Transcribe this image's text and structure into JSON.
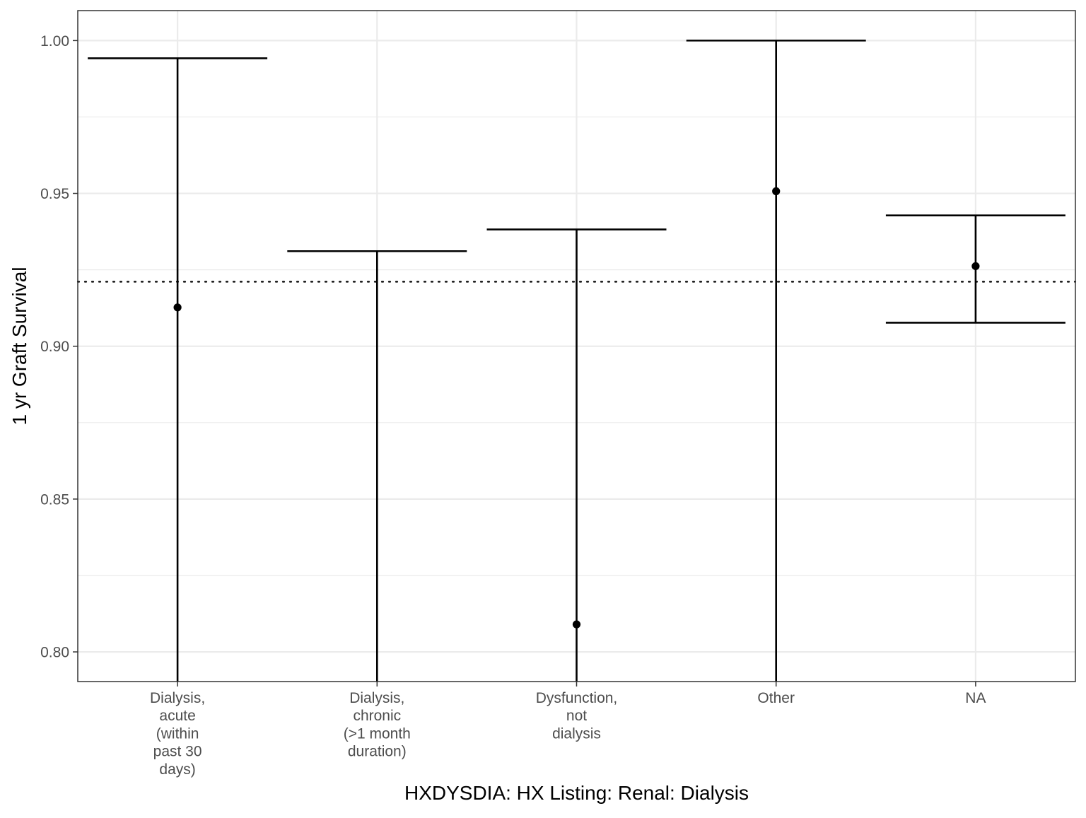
{
  "chart_data": {
    "type": "errorbar",
    "title": "",
    "xlabel": "HXDYSDIA: HX Listing: Renal: Dialysis",
    "ylabel": "1 yr Graft Survival",
    "categories": [
      "Dialysis,\nacute\n(within\npast 30\ndays)",
      "Dialysis,\nchronic\n(>1 month\nduration)",
      "Dysfunction,\nnot\ndialysis",
      "Other",
      "NA"
    ],
    "estimate": [
      0.9127,
      null,
      0.809,
      0.9507,
      0.9262
    ],
    "lower": [
      0.79,
      0.79,
      0.79,
      0.79,
      0.9077
    ],
    "upper": [
      0.9942,
      0.9311,
      0.9382,
      1.0,
      0.9428
    ],
    "reference_line": 0.9211,
    "ylim": [
      0.7903,
      1.0098
    ],
    "yticks": [
      "0.80",
      "0.85",
      "0.90",
      "0.95",
      "1.00"
    ],
    "ytick_values": [
      0.8,
      0.85,
      0.9,
      0.95,
      1.0
    ],
    "grid": true,
    "legend": "none",
    "colors": {
      "marks": "#000000",
      "grid": "#ebebeb",
      "panel_border": "#333333",
      "tick_text": "#4d4d4d"
    }
  }
}
